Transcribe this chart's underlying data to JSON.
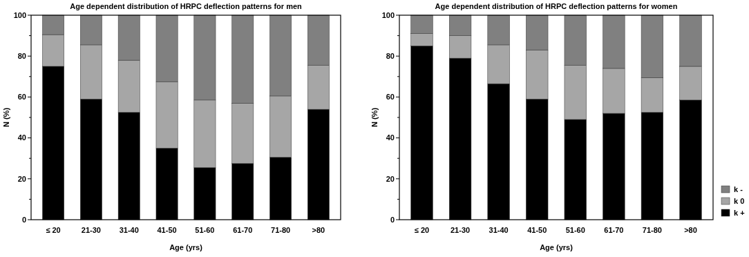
{
  "chart_data": [
    {
      "type": "bar",
      "title": "Age dependent distribution of HRPC deflection patterns for men",
      "xlabel": "Age (yrs)",
      "ylabel": "N (%)",
      "stacked": true,
      "categories": [
        "≤ 20",
        "21-30",
        "31-40",
        "41-50",
        "51-60",
        "61-70",
        "71-80",
        ">80"
      ],
      "series": [
        {
          "color": "#000000",
          "values": [
            75,
            59,
            52.5,
            35,
            25.5,
            27.5,
            30.5,
            54
          ]
        },
        {
          "color": "#a6a6a6",
          "values": [
            15.5,
            26.5,
            25.5,
            32.5,
            33,
            29.5,
            30,
            21.5
          ]
        },
        {
          "color": "#808080",
          "values": [
            9.5,
            14.5,
            22,
            32.5,
            41.5,
            43,
            39.5,
            24.5
          ]
        }
      ],
      "ylim": [
        0,
        100
      ],
      "yticks": [
        0,
        {
          "value": 10,
          "label": null
        },
        20,
        {
          "value": 30,
          "label": null
        },
        40,
        {
          "value": 50,
          "label": null
        },
        60,
        {
          "value": 70,
          "label": null
        },
        80,
        {
          "value": 90,
          "label": null
        },
        100
      ],
      "grid": false,
      "legend": false
    },
    {
      "type": "bar",
      "title": "Age dependent distribution of HRPC deflection patterns for women",
      "xlabel": "Age (yrs)",
      "ylabel": "N (%)",
      "stacked": true,
      "categories": [
        "≤ 20",
        "21-30",
        "31-40",
        "41-50",
        "51-60",
        "61-70",
        "71-80",
        ">80"
      ],
      "series": [
        {
          "name": "k +",
          "color": "#000000",
          "values": [
            85,
            79,
            66.5,
            59,
            49,
            52,
            52.5,
            58.5
          ]
        },
        {
          "name": "k 0",
          "color": "#a6a6a6",
          "values": [
            6,
            11,
            19,
            24,
            26.5,
            22,
            17,
            16.5
          ]
        },
        {
          "name": "k -",
          "color": "#808080",
          "values": [
            9,
            10,
            14.5,
            17,
            24.5,
            26,
            30.5,
            25
          ]
        }
      ],
      "ylim": [
        0,
        100
      ],
      "yticks": [
        0,
        {
          "value": 10,
          "label": null
        },
        20,
        {
          "value": 30,
          "label": null
        },
        40,
        {
          "value": 50,
          "label": null
        },
        60,
        {
          "value": 70,
          "label": null
        },
        80,
        {
          "value": 90,
          "label": null
        },
        100
      ],
      "grid": false,
      "legend": "bottom right"
    }
  ]
}
